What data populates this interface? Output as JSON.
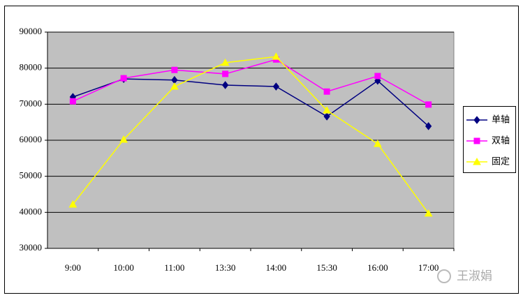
{
  "chart_data": {
    "type": "line",
    "categories": [
      "9:00",
      "10:00",
      "11:00",
      "13:30",
      "14:00",
      "15:30",
      "16:00",
      "17:00"
    ],
    "series": [
      {
        "name": "单轴",
        "color": "#000080",
        "marker": "diamond",
        "values": [
          72000,
          77000,
          76700,
          75300,
          74900,
          66600,
          76500,
          63900
        ]
      },
      {
        "name": "双轴",
        "color": "#ff00ff",
        "marker": "square",
        "values": [
          70800,
          77200,
          79500,
          78400,
          82400,
          73500,
          77800,
          69900
        ]
      },
      {
        "name": "固定",
        "color": "#ffff00",
        "marker": "triangle",
        "values": [
          42200,
          60200,
          74900,
          81500,
          83200,
          68300,
          59000,
          39700
        ]
      }
    ],
    "ylim": [
      30000,
      90000
    ],
    "yticks": [
      30000,
      40000,
      50000,
      60000,
      70000,
      80000,
      90000
    ],
    "grid": true,
    "legend": "right",
    "watermark": "王淑娟"
  }
}
